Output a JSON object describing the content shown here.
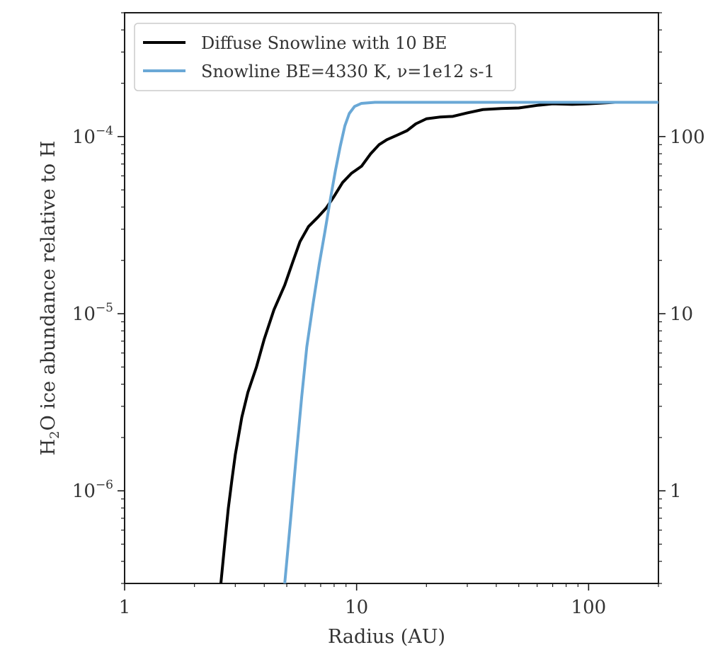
{
  "chart_data": {
    "type": "line",
    "xlabel": "Radius (AU)",
    "ylabel_left": {
      "main": "H",
      "sub": "2",
      "rest": "O ice abundance relative to H"
    },
    "x_scale": "log",
    "y_left_scale": "log",
    "y_right_scale": "log",
    "xlim": [
      1,
      200
    ],
    "ylim_left": [
      3e-07,
      0.0005
    ],
    "x_ticks": [
      {
        "value": 1,
        "label": "1"
      },
      {
        "value": 10,
        "label": "10"
      },
      {
        "value": 100,
        "label": "100"
      }
    ],
    "y_left_ticks": [
      {
        "value": 1e-06,
        "base": "10",
        "exp": "−6"
      },
      {
        "value": 1e-05,
        "base": "10",
        "exp": "−5"
      },
      {
        "value": 0.0001,
        "base": "10",
        "exp": "−4"
      }
    ],
    "y_right_ticks": [
      {
        "value": 1e-06,
        "label": "1"
      },
      {
        "value": 1e-05,
        "label": "10"
      },
      {
        "value": 0.0001,
        "label": "100"
      }
    ],
    "grid": false,
    "legend_position": "top-left",
    "series": [
      {
        "name": "Diffuse Snowline with 10 BE",
        "color": "#000000",
        "points": [
          [
            2.6,
            3e-07
          ],
          [
            2.7,
            5e-07
          ],
          [
            2.8,
            8e-07
          ],
          [
            2.9,
            1.15e-06
          ],
          [
            3.0,
            1.6e-06
          ],
          [
            3.2,
            2.6e-06
          ],
          [
            3.4,
            3.6e-06
          ],
          [
            3.7,
            5e-06
          ],
          [
            4.0,
            7.2e-06
          ],
          [
            4.4,
            1.05e-05
          ],
          [
            4.9,
            1.45e-05
          ],
          [
            5.3,
            1.95e-05
          ],
          [
            5.7,
            2.55e-05
          ],
          [
            6.2,
            3.1e-05
          ],
          [
            6.8,
            3.5e-05
          ],
          [
            7.4,
            3.95e-05
          ],
          [
            8.0,
            4.6e-05
          ],
          [
            8.7,
            5.5e-05
          ],
          [
            9.5,
            6.2e-05
          ],
          [
            10.5,
            6.8e-05
          ],
          [
            11.5,
            8e-05
          ],
          [
            12.5,
            9e-05
          ],
          [
            13.5,
            9.6e-05
          ],
          [
            15.0,
            0.000102
          ],
          [
            16.5,
            0.000108
          ],
          [
            18.0,
            0.000118
          ],
          [
            20.0,
            0.000126
          ],
          [
            23.0,
            0.000129
          ],
          [
            26.0,
            0.00013
          ],
          [
            30.0,
            0.000136
          ],
          [
            35.0,
            0.000142
          ],
          [
            42.0,
            0.000144
          ],
          [
            50.0,
            0.000145
          ],
          [
            60.0,
            0.00015
          ],
          [
            70.0,
            0.000153
          ],
          [
            85.0,
            0.000152
          ],
          [
            100.0,
            0.000153
          ],
          [
            130.0,
            0.000156
          ],
          [
            200.0,
            0.000156
          ]
        ]
      },
      {
        "name": "Snowline BE=4330 K, ν=1e12 s-1",
        "color": "#6aa8d6",
        "points": [
          [
            4.9,
            3e-07
          ],
          [
            5.2,
            7e-07
          ],
          [
            5.5,
            1.6e-06
          ],
          [
            5.8,
            3.4e-06
          ],
          [
            6.1,
            6.5e-06
          ],
          [
            6.5,
            1.15e-05
          ],
          [
            6.9,
            1.9e-05
          ],
          [
            7.3,
            2.9e-05
          ],
          [
            7.7,
            4.4e-05
          ],
          [
            8.1,
            6.4e-05
          ],
          [
            8.5,
            8.8e-05
          ],
          [
            8.9,
            0.000115
          ],
          [
            9.3,
            0.000135
          ],
          [
            9.8,
            0.000148
          ],
          [
            10.5,
            0.000154
          ],
          [
            12.0,
            0.000156
          ],
          [
            20.0,
            0.000156
          ],
          [
            200.0,
            0.000156
          ]
        ]
      }
    ]
  }
}
